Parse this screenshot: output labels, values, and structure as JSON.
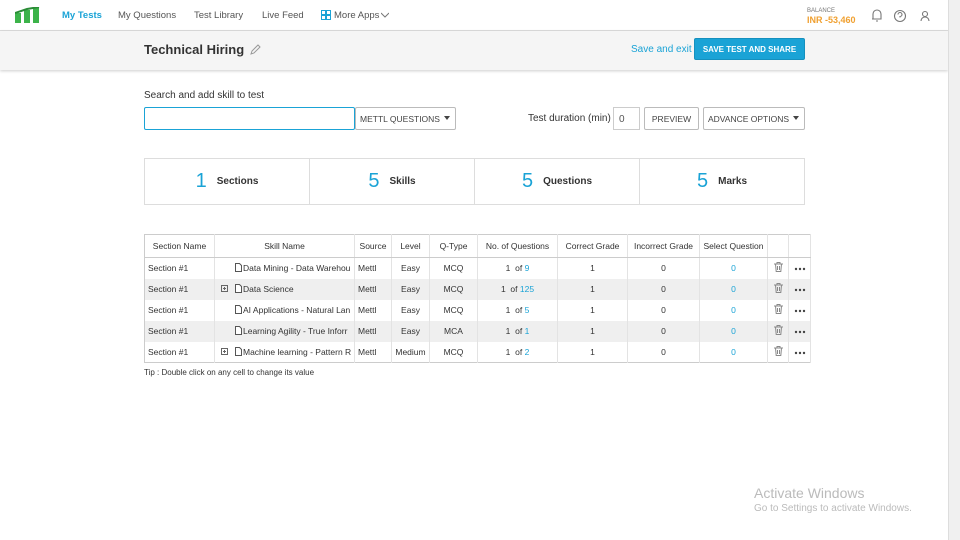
{
  "nav": {
    "items": [
      "My Tests",
      "My Questions",
      "Test Library",
      "Live Feed",
      "More Apps"
    ],
    "balance_label": "BALANCE",
    "balance": "INR -53,460"
  },
  "header": {
    "title": "Technical Hiring",
    "save_exit": "Save and exit",
    "save_share": "SAVE TEST AND SHARE"
  },
  "search": {
    "label": "Search and add skill to test",
    "dropdown": "METTL QUESTIONS",
    "duration_label": "Test duration (min)",
    "duration": 0,
    "preview": "PREVIEW",
    "advance": "ADVANCE OPTIONS"
  },
  "summary": [
    {
      "count": 1,
      "label": "Sections"
    },
    {
      "count": 5,
      "label": "Skills"
    },
    {
      "count": 5,
      "label": "Questions"
    },
    {
      "count": 5,
      "label": "Marks"
    }
  ],
  "table": {
    "columns": [
      "Section Name",
      "Skill Name",
      "Source",
      "Level",
      "Q-Type",
      "No. of Questions",
      "Correct Grade",
      "Incorrect Grade",
      "Select Question"
    ],
    "of_label": "of",
    "rows": [
      {
        "section": "Section #1",
        "expandable": false,
        "skill": "Data Mining - Data Warehou",
        "source": "Mettl",
        "level": "Easy",
        "qtype": "MCQ",
        "count": 1,
        "total": 9,
        "correct": 1,
        "incorrect": 0,
        "select": 0
      },
      {
        "section": "Section #1",
        "expandable": true,
        "skill": "Data Science",
        "source": "Mettl",
        "level": "Easy",
        "qtype": "MCQ",
        "count": 1,
        "total": 125,
        "correct": 1,
        "incorrect": 0,
        "select": 0
      },
      {
        "section": "Section #1",
        "expandable": false,
        "skill": "AI Applications - Natural Lan",
        "source": "Mettl",
        "level": "Easy",
        "qtype": "MCQ",
        "count": 1,
        "total": 5,
        "correct": 1,
        "incorrect": 0,
        "select": 0
      },
      {
        "section": "Section #1",
        "expandable": false,
        "skill": "Learning Agility - True Inforr",
        "source": "Mettl",
        "level": "Easy",
        "qtype": "MCA",
        "count": 1,
        "total": 1,
        "correct": 1,
        "incorrect": 0,
        "select": 0
      },
      {
        "section": "Section #1",
        "expandable": true,
        "skill": "Machine learning - Pattern R",
        "source": "Mettl",
        "level": "Medium",
        "qtype": "MCQ",
        "count": 1,
        "total": 2,
        "correct": 1,
        "incorrect": 0,
        "select": 0
      }
    ]
  },
  "tip": "Tip : Double click on any cell to change its value",
  "watermark": {
    "title": "Activate Windows",
    "subtitle": "Go to Settings to activate Windows."
  }
}
